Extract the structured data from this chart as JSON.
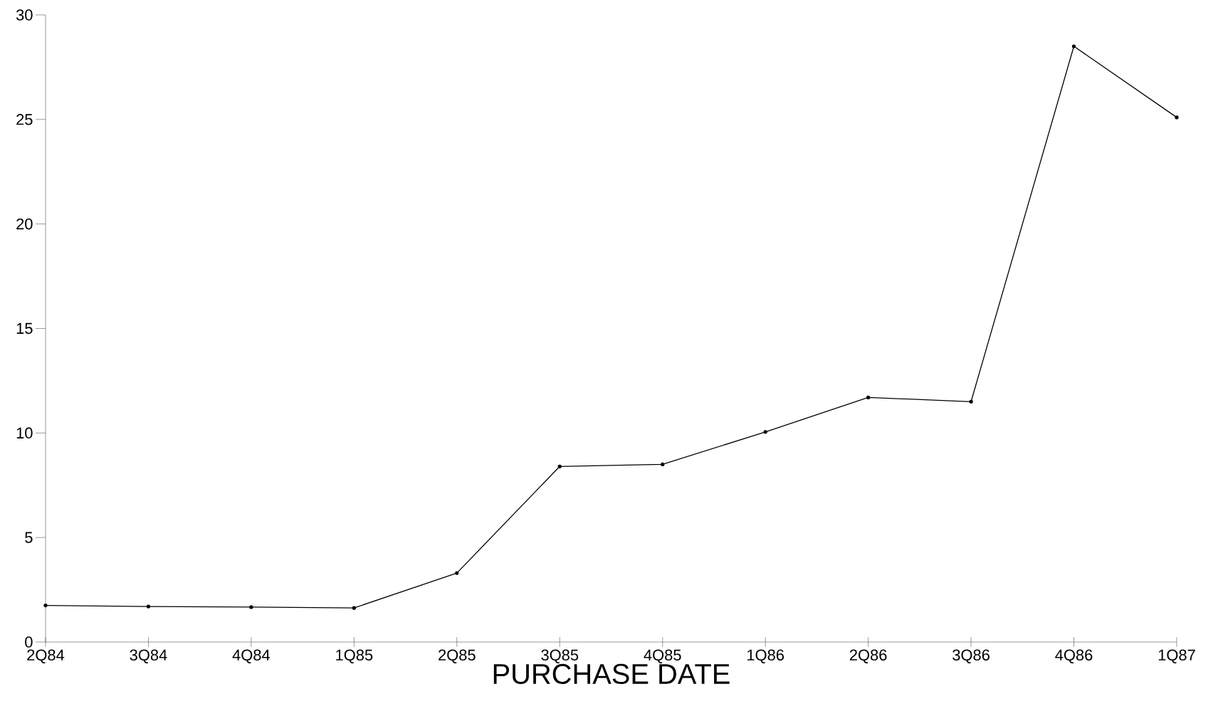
{
  "chart_data": {
    "type": "line",
    "xlabel": "PURCHASE DATE",
    "categories": [
      "2Q84",
      "3Q84",
      "4Q84",
      "1Q85",
      "2Q85",
      "3Q85",
      "4Q85",
      "1Q86",
      "2Q86",
      "3Q86",
      "4Q86",
      "1Q87"
    ],
    "values": [
      1.75,
      1.7,
      1.67,
      1.63,
      3.3,
      8.4,
      8.5,
      10.05,
      11.7,
      11.5,
      28.5,
      25.1
    ],
    "color": "#000000",
    "marker": "circle",
    "line_style": "solid",
    "grid": false,
    "ylim": [
      0,
      30
    ],
    "yticks": [
      0,
      5,
      10,
      15,
      20,
      25,
      30
    ]
  }
}
